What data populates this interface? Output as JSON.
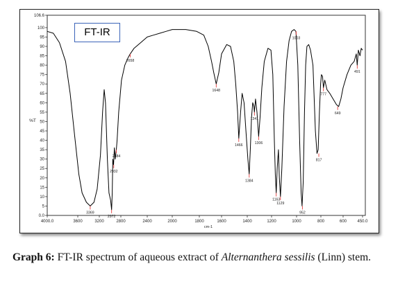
{
  "chart_data": {
    "type": "line",
    "legend_label": "FT-IR",
    "xlabel": "cm-1",
    "ylabel": "%T",
    "xlim": [
      4000.0,
      450.0
    ],
    "ylim": [
      0.0,
      106.6
    ],
    "x_reversed": true,
    "x_tick_labels": [
      "4000.0",
      "3600",
      "3200",
      "2800",
      "2400",
      "2000",
      "1800",
      "1600",
      "1400",
      "1200",
      "1000",
      "800",
      "600",
      "450.0"
    ],
    "y_tick_labels": [
      "106.6",
      "100",
      "95",
      "90",
      "85",
      "80",
      "75",
      "70",
      "65",
      "60",
      "55",
      "50",
      "45",
      "40",
      "35",
      "30",
      "25",
      "20",
      "15",
      "10",
      "5",
      "0.0"
    ],
    "series": [
      {
        "color": "#000000",
        "points": [
          [
            4000,
            98
          ],
          [
            3920,
            97
          ],
          [
            3840,
            92
          ],
          [
            3760,
            82
          ],
          [
            3700,
            65
          ],
          [
            3640,
            42
          ],
          [
            3580,
            22
          ],
          [
            3520,
            12
          ],
          [
            3440,
            7
          ],
          [
            3369,
            5
          ],
          [
            3300,
            7
          ],
          [
            3240,
            14
          ],
          [
            3180,
            32
          ],
          [
            3140,
            55
          ],
          [
            3110,
            67
          ],
          [
            3085,
            60
          ],
          [
            3050,
            30
          ],
          [
            3020,
            12
          ],
          [
            2990,
            8
          ],
          [
            2972,
            3
          ],
          [
            2960,
            12
          ],
          [
            2950,
            30
          ],
          [
            2935,
            27
          ],
          [
            2920,
            36
          ],
          [
            2905,
            30
          ],
          [
            2884,
            35
          ],
          [
            2870,
            40
          ],
          [
            2840,
            55
          ],
          [
            2790,
            72
          ],
          [
            2740,
            80
          ],
          [
            2690,
            84
          ],
          [
            2658,
            86
          ],
          [
            2600,
            89
          ],
          [
            2500,
            92
          ],
          [
            2400,
            95
          ],
          [
            2300,
            96
          ],
          [
            2200,
            97
          ],
          [
            2100,
            98
          ],
          [
            2000,
            99
          ],
          [
            1900,
            99
          ],
          [
            1820,
            98
          ],
          [
            1760,
            96
          ],
          [
            1720,
            90
          ],
          [
            1690,
            82
          ],
          [
            1670,
            76
          ],
          [
            1648,
            70
          ],
          [
            1625,
            76
          ],
          [
            1600,
            86
          ],
          [
            1560,
            91
          ],
          [
            1530,
            90
          ],
          [
            1505,
            82
          ],
          [
            1490,
            70
          ],
          [
            1475,
            55
          ],
          [
            1466,
            41
          ],
          [
            1452,
            55
          ],
          [
            1440,
            65
          ],
          [
            1425,
            60
          ],
          [
            1410,
            45
          ],
          [
            1395,
            30
          ],
          [
            1384,
            22
          ],
          [
            1375,
            35
          ],
          [
            1365,
            52
          ],
          [
            1355,
            60
          ],
          [
            1345,
            58
          ],
          [
            1341,
            55
          ],
          [
            1332,
            62
          ],
          [
            1320,
            55
          ],
          [
            1306,
            42
          ],
          [
            1295,
            52
          ],
          [
            1280,
            68
          ],
          [
            1260,
            82
          ],
          [
            1230,
            89
          ],
          [
            1205,
            88
          ],
          [
            1190,
            75
          ],
          [
            1178,
            40
          ],
          [
            1170,
            22
          ],
          [
            1163,
            12
          ],
          [
            1155,
            25
          ],
          [
            1145,
            35
          ],
          [
            1138,
            20
          ],
          [
            1129,
            10
          ],
          [
            1118,
            25
          ],
          [
            1100,
            58
          ],
          [
            1080,
            82
          ],
          [
            1060,
            93
          ],
          [
            1040,
            98
          ],
          [
            1020,
            99
          ],
          [
            1005,
            98
          ],
          [
            990,
            80
          ],
          [
            975,
            40
          ],
          [
            962,
            12
          ],
          [
            955,
            5
          ],
          [
            945,
            18
          ],
          [
            935,
            55
          ],
          [
            925,
            80
          ],
          [
            915,
            90
          ],
          [
            900,
            91
          ],
          [
            885,
            88
          ],
          [
            865,
            80
          ],
          [
            845,
            45
          ],
          [
            832,
            33
          ],
          [
            822,
            35
          ],
          [
            812,
            55
          ],
          [
            802,
            70
          ],
          [
            795,
            75
          ],
          [
            785,
            74
          ],
          [
            777,
            68
          ],
          [
            765,
            72
          ],
          [
            745,
            67
          ],
          [
            720,
            65
          ],
          [
            690,
            62
          ],
          [
            660,
            59
          ],
          [
            640,
            58
          ],
          [
            620,
            62
          ],
          [
            600,
            68
          ],
          [
            570,
            75
          ],
          [
            540,
            80
          ],
          [
            515,
            82
          ],
          [
            498,
            86
          ],
          [
            491,
            80
          ],
          [
            482,
            88
          ],
          [
            470,
            85
          ],
          [
            460,
            89
          ],
          [
            450,
            88
          ]
        ]
      }
    ],
    "peak_labels": [
      {
        "label": "3369",
        "x": 3369,
        "y": 5
      },
      {
        "label": "2972",
        "x": 2972,
        "y": 3
      },
      {
        "label": "2932",
        "x": 2932,
        "y": 27
      },
      {
        "label": "2884",
        "x": 2884,
        "y": 35
      },
      {
        "label": "2658",
        "x": 2658,
        "y": 86
      },
      {
        "label": "1648",
        "x": 1648,
        "y": 70
      },
      {
        "label": "1466",
        "x": 1466,
        "y": 41
      },
      {
        "label": "1384",
        "x": 1384,
        "y": 22
      },
      {
        "label": "1341",
        "x": 1341,
        "y": 55
      },
      {
        "label": "1306",
        "x": 1306,
        "y": 42
      },
      {
        "label": "1163",
        "x": 1163,
        "y": 12
      },
      {
        "label": "1129",
        "x": 1129,
        "y": 10
      },
      {
        "label": "1003",
        "x": 1003,
        "y": 98
      },
      {
        "label": "952",
        "x": 952,
        "y": 5
      },
      {
        "label": "817",
        "x": 817,
        "y": 33
      },
      {
        "label": "777",
        "x": 777,
        "y": 68
      },
      {
        "label": "649",
        "x": 649,
        "y": 58
      },
      {
        "label": "491",
        "x": 491,
        "y": 80
      }
    ]
  },
  "caption": {
    "label": "Graph 6:",
    "text_before": "FT-IR spectrum of aqueous extract of",
    "species": "Alternanthera sessilis",
    "text_after": "(Linn) stem."
  }
}
